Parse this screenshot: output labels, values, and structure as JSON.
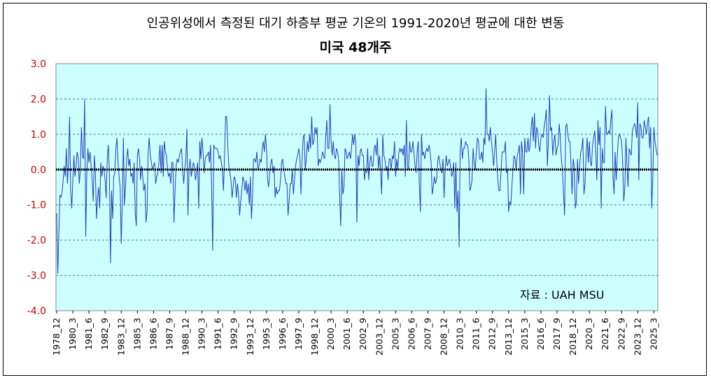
{
  "chart_data": {
    "type": "line",
    "title": "인공위성에서 측정된 대기 하층부 평균 기온의 1991-2020년 평균에 대한 변동",
    "subtitle": "미국 48개주",
    "source_note": "자료 : UAH MSU",
    "ylim": [
      -4.0,
      3.0
    ],
    "yticks": [
      "3.0",
      "2.0",
      "1.0",
      "0.0",
      "-1.0",
      "-2.0",
      "-3.0",
      "-4.0"
    ],
    "ytick_values": [
      3,
      2,
      1,
      0,
      -1,
      -2,
      -3,
      -4
    ],
    "x_start": "1978_12",
    "x_end": "2025_6",
    "x_tick_labels": [
      "1978_12",
      "1980_3",
      "1981_6",
      "1982_9",
      "1983_12",
      "1985_3",
      "1986_6",
      "1987_9",
      "1988_12",
      "1990_3",
      "1991_6",
      "1992_9",
      "1993_12",
      "1995_3",
      "1996_6",
      "1997_9",
      "1998_12",
      "2000_3",
      "2001_6",
      "2002_9",
      "2003_12",
      "2005_3",
      "2006_6",
      "2007_9",
      "2008_12",
      "2010_3",
      "2011_6",
      "2012_9",
      "2013_12",
      "2015_3",
      "2016_6",
      "2017_9",
      "2018_12",
      "2020_3",
      "2021_6",
      "2022_9",
      "2023_12",
      "2025_3"
    ],
    "grid": true,
    "zero_line": 0.0,
    "series": [
      {
        "color": "#1f3fbf",
        "x": "monthly 1978_12 to 2025_6",
        "values_by_year": {
          "1978": [
            -1.24
          ],
          "1979": [
            -2.95,
            -1.8,
            -0.72,
            -0.78,
            -0.65,
            -0.3,
            0.1,
            -0.2,
            0.6,
            -0.4,
            0.2,
            1.5
          ],
          "1980": [
            -0.6,
            -1.1,
            -0.3,
            0.4,
            -0.2,
            0.1,
            0.5,
            0.3,
            -0.4,
            0.0,
            1.2,
            0.4
          ],
          "1981": [
            0.3,
            2.0,
            -1.9,
            -0.1,
            0.6,
            0.2,
            0.5,
            0.1,
            -0.3,
            -0.9,
            0.4,
            -0.1
          ],
          "1982": [
            -1.4,
            -0.8,
            -0.5,
            -1.1,
            0.2,
            -0.2,
            0.1,
            0.0,
            -0.3,
            -0.8,
            0.3,
            0.7
          ],
          "1983": [
            -0.1,
            -2.65,
            -0.6,
            -1.4,
            -0.2,
            -0.1,
            0.6,
            0.9,
            0.2,
            -0.2,
            -0.5,
            -2.1
          ],
          "1984": [
            -0.9,
            0.9,
            -1.0,
            -0.5,
            0.3,
            0.6,
            0.1,
            0.3,
            -0.2,
            -0.1,
            -0.4,
            0.2
          ],
          "1985": [
            -1.2,
            -1.6,
            0.4,
            0.6,
            0.3,
            -0.3,
            0.1,
            -0.2,
            -0.6,
            -0.4,
            -1.5,
            -1.2
          ],
          "1986": [
            0.5,
            0.9,
            0.4,
            0.2,
            0.0,
            0.1,
            0.2,
            -0.4,
            -0.2,
            -0.1,
            0.2,
            0.7
          ],
          "1987": [
            -0.1,
            0.7,
            -0.2,
            0.8,
            0.5,
            0.4,
            0.0,
            -0.2,
            -0.1,
            -0.4,
            0.2,
            0.2
          ],
          "1988": [
            -1.5,
            -0.6,
            0.1,
            0.3,
            0.2,
            0.4,
            0.5,
            0.6,
            0.0,
            -0.4,
            0.0,
            0.3
          ],
          "1989": [
            1.15,
            -1.3,
            0.0,
            0.3,
            -0.2,
            0.0,
            0.2,
            0.1,
            -0.3,
            -0.1,
            0.2,
            -1.1
          ],
          "1990": [
            0.8,
            0.3,
            0.9,
            0.5,
            -0.1,
            0.3,
            0.4,
            0.4,
            0.5,
            0.2,
            0.7,
            -0.6
          ],
          "1991": [
            -2.3,
            0.7,
            0.6,
            0.6,
            0.6,
            0.5,
            0.3,
            0.4,
            0.2,
            0.0,
            -0.6,
            0.4
          ],
          "1992": [
            1.5,
            1.5,
            0.7,
            0.1,
            -0.1,
            -0.3,
            -0.8,
            -0.5,
            -0.2,
            -0.3,
            -0.8,
            -0.4
          ],
          "1993": [
            -0.7,
            -1.3,
            -0.9,
            -0.6,
            -0.2,
            -0.3,
            -0.6,
            -0.3,
            -0.7,
            -0.4,
            -1.0,
            -0.2
          ],
          "1994": [
            -1.4,
            -0.8,
            0.3,
            0.3,
            0.2,
            0.5,
            0.0,
            0.1,
            0.3,
            0.2,
            0.6,
            0.8
          ],
          "1995": [
            0.5,
            1.0,
            0.6,
            -0.3,
            -0.5,
            -0.1,
            0.2,
            0.3,
            -0.1,
            0.1,
            -0.8,
            -0.5
          ],
          "1996": [
            -0.7,
            -0.6,
            -0.6,
            -0.3,
            0.2,
            0.3,
            0.0,
            -0.2,
            -0.4,
            -0.4,
            -1.3,
            -0.9
          ],
          "1997": [
            -0.4,
            -0.4,
            0.0,
            -0.7,
            -0.3,
            0.1,
            0.3,
            0.4,
            0.6,
            0.4,
            -0.7,
            0.2
          ],
          "1998": [
            0.9,
            1.0,
            0.0,
            0.3,
            0.8,
            0.5,
            1.0,
            0.6,
            1.5,
            0.7,
            0.8,
            1.2
          ],
          "1999": [
            1.0,
            1.2,
            0.1,
            0.3,
            0.2,
            0.3,
            0.5,
            0.4,
            0.3,
            0.9,
            1.4,
            0.6
          ],
          "2000": [
            0.6,
            1.85,
            0.8,
            0.4,
            0.8,
            0.4,
            0.3,
            0.6,
            0.5,
            0.3,
            -0.8,
            -1.6
          ],
          "2001": [
            0.0,
            -0.7,
            -0.5,
            0.6,
            0.5,
            0.3,
            0.4,
            0.5,
            0.3,
            0.6,
            1.0,
            0.7
          ],
          "2002": [
            1.0,
            0.8,
            -1.5,
            0.4,
            0.1,
            0.5,
            0.6,
            0.4,
            0.4,
            -0.3,
            0.0,
            -0.1
          ],
          "2003": [
            0.6,
            -0.3,
            0.2,
            0.4,
            0.1,
            0.1,
            0.6,
            0.7,
            0.4,
            0.9,
            0.0,
            0.4
          ],
          "2004": [
            0.0,
            -0.7,
            1.0,
            0.4,
            0.3,
            0.0,
            0.1,
            -0.3,
            0.3,
            0.3,
            0.0,
            0.4
          ],
          "2005": [
            0.3,
            0.8,
            -0.2,
            0.3,
            0.0,
            0.5,
            0.6,
            0.5,
            0.6,
            0.4,
            0.7,
            -0.2
          ],
          "2006": [
            1.4,
            0.1,
            0.0,
            0.8,
            0.5,
            0.5,
            0.8,
            0.5,
            0.1,
            -0.1,
            0.5,
            0.8
          ],
          "2007": [
            -0.4,
            -1.2,
            1.0,
            0.4,
            0.5,
            0.3,
            0.5,
            0.6,
            0.5,
            0.7,
            0.5,
            0.2
          ],
          "2008": [
            -0.7,
            -0.5,
            -0.2,
            -0.4,
            -0.3,
            0.2,
            0.4,
            0.2,
            0.0,
            -0.1,
            0.3,
            -0.8
          ],
          "2009": [
            0.0,
            0.4,
            0.1,
            0.2,
            0.3,
            0.1,
            -0.2,
            -0.1,
            0.2,
            -1.1,
            0.2,
            -1.2
          ],
          "2010": [
            -0.6,
            -2.2,
            0.6,
            0.9,
            0.3,
            0.6,
            0.6,
            0.8,
            0.7,
            0.7,
            0.3,
            -0.6
          ],
          "2011": [
            -0.5,
            -0.3,
            0.6,
            0.2,
            0.0,
            0.5,
            0.9,
            0.8,
            0.3,
            0.3,
            0.5,
            0.2
          ],
          "2012": [
            0.9,
            0.7,
            2.3,
            1.0,
            1.0,
            0.8,
            1.2,
            0.8,
            0.5,
            0.1,
            0.5,
            1.0
          ],
          "2013": [
            0.2,
            -0.3,
            -0.6,
            -0.6,
            0.0,
            0.5,
            0.5,
            0.5,
            0.8,
            -0.1,
            0.0,
            -1.2
          ],
          "2014": [
            -0.9,
            -1.0,
            -0.5,
            0.0,
            0.4,
            0.3,
            0.0,
            0.4,
            0.5,
            0.7,
            -0.7,
            0.8
          ],
          "2015": [
            0.5,
            -0.7,
            0.9,
            0.5,
            0.5,
            0.9,
            0.5,
            0.7,
            1.2,
            1.5,
            0.8,
            1.6
          ],
          "2016": [
            0.6,
            1.2,
            1.1,
            0.7,
            0.5,
            0.9,
            1.0,
            0.9,
            1.2,
            1.4,
            1.7,
            0.1
          ],
          "2017": [
            0.8,
            2.1,
            1.1,
            1.2,
            0.4,
            0.8,
            1.0,
            0.4,
            0.6,
            0.7,
            1.3,
            0.9
          ],
          "2018": [
            0.3,
            0.0,
            -0.7,
            -1.3,
            1.2,
            1.3,
            1.0,
            0.8,
            0.8,
            0.1,
            -0.7,
            0.3
          ],
          "2019": [
            0.1,
            -1.1,
            -0.9,
            0.3,
            -0.4,
            0.1,
            0.5,
            0.6,
            0.9,
            -0.7,
            -0.4,
            0.4
          ],
          "2020": [
            0.9,
            0.2,
            0.8,
            0.2,
            0.1,
            0.7,
            0.9,
            1.1,
            0.5,
            -0.3,
            1.4,
            0.7
          ],
          "2021": [
            1.2,
            -1.1,
            0.6,
            0.2,
            0.2,
            1.8,
            1.0,
            1.0,
            1.1,
            1.0,
            1.4,
            1.7
          ],
          "2022": [
            -0.2,
            -0.7,
            0.5,
            -0.3,
            0.4,
            0.9,
            1.0,
            0.9,
            0.8,
            0.2,
            -0.9,
            -0.5
          ],
          "2023": [
            0.9,
            0.1,
            -0.5,
            0.6,
            0.5,
            0.4,
            1.1,
            1.2,
            1.3,
            1.2,
            0.9,
            1.9
          ],
          "2024": [
            -0.3,
            1.3,
            1.2,
            0.9,
            0.9,
            1.4,
            1.2,
            1.0,
            1.3,
            1.5,
            0.6,
            1.2
          ],
          "2025": [
            -1.1,
            -0.2,
            1.2,
            0.8,
            0.6,
            0.4
          ]
        }
      }
    ]
  }
}
